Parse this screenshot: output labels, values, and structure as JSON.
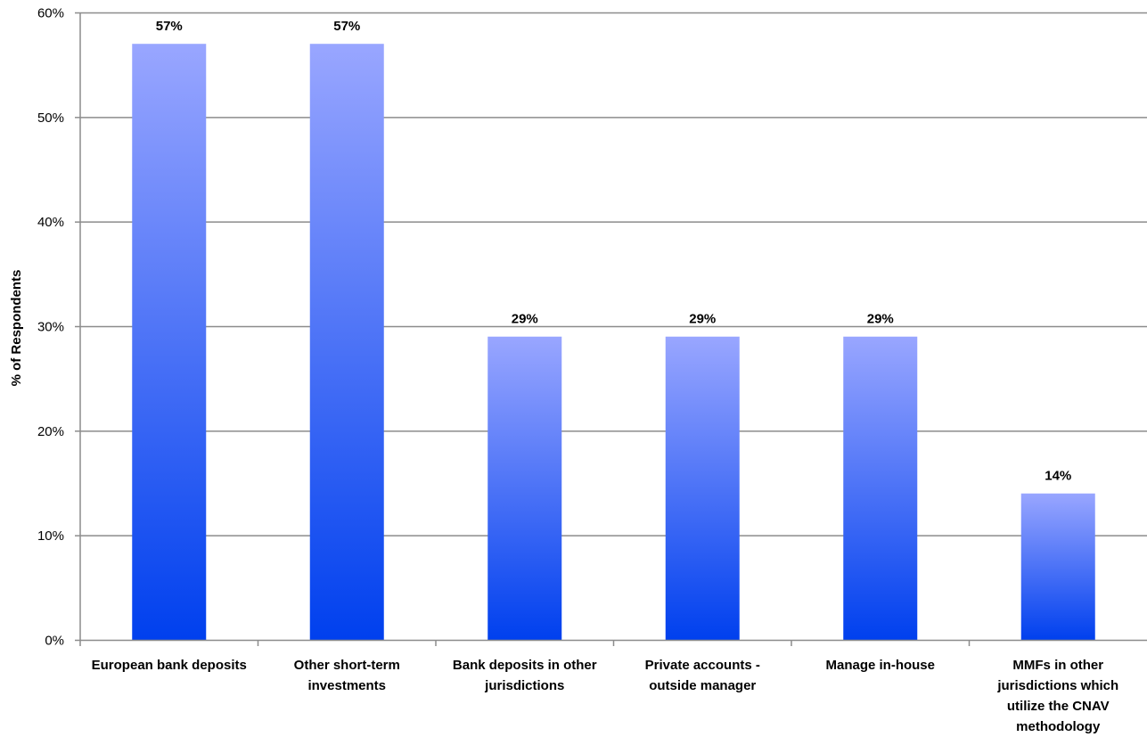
{
  "chart_data": {
    "type": "bar",
    "categories": [
      "European bank deposits",
      "Other short-term investments",
      "Bank deposits in other jurisdictions",
      "Private accounts - outside manager",
      "Manage in-house",
      "MMFs in other jurisdictions which utilize the CNAV methodology"
    ],
    "category_lines": [
      [
        "European bank deposits"
      ],
      [
        "Other short-term",
        "investments"
      ],
      [
        "Bank deposits in other",
        "jurisdictions"
      ],
      [
        "Private accounts -",
        "outside manager"
      ],
      [
        "Manage in-house"
      ],
      [
        "MMFs in other",
        "jurisdictions which",
        "utilize the CNAV",
        "methodology"
      ]
    ],
    "values": [
      57,
      57,
      29,
      29,
      29,
      14
    ],
    "data_labels": [
      "57%",
      "57%",
      "29%",
      "29%",
      "29%",
      "14%"
    ],
    "title": "",
    "xlabel": "",
    "ylabel": "% of Respondents",
    "ylim": [
      0,
      60
    ],
    "yticks": [
      0,
      10,
      20,
      30,
      40,
      50,
      60
    ],
    "ytick_labels": [
      "0%",
      "10%",
      "20%",
      "30%",
      "40%",
      "50%",
      "60%"
    ],
    "grid": true,
    "legend": "none",
    "colors": {
      "bar_top": "#99a6ff",
      "bar_bottom": "#0040ee",
      "grid": "#8c8c8c",
      "axis": "#8c8c8c"
    }
  }
}
